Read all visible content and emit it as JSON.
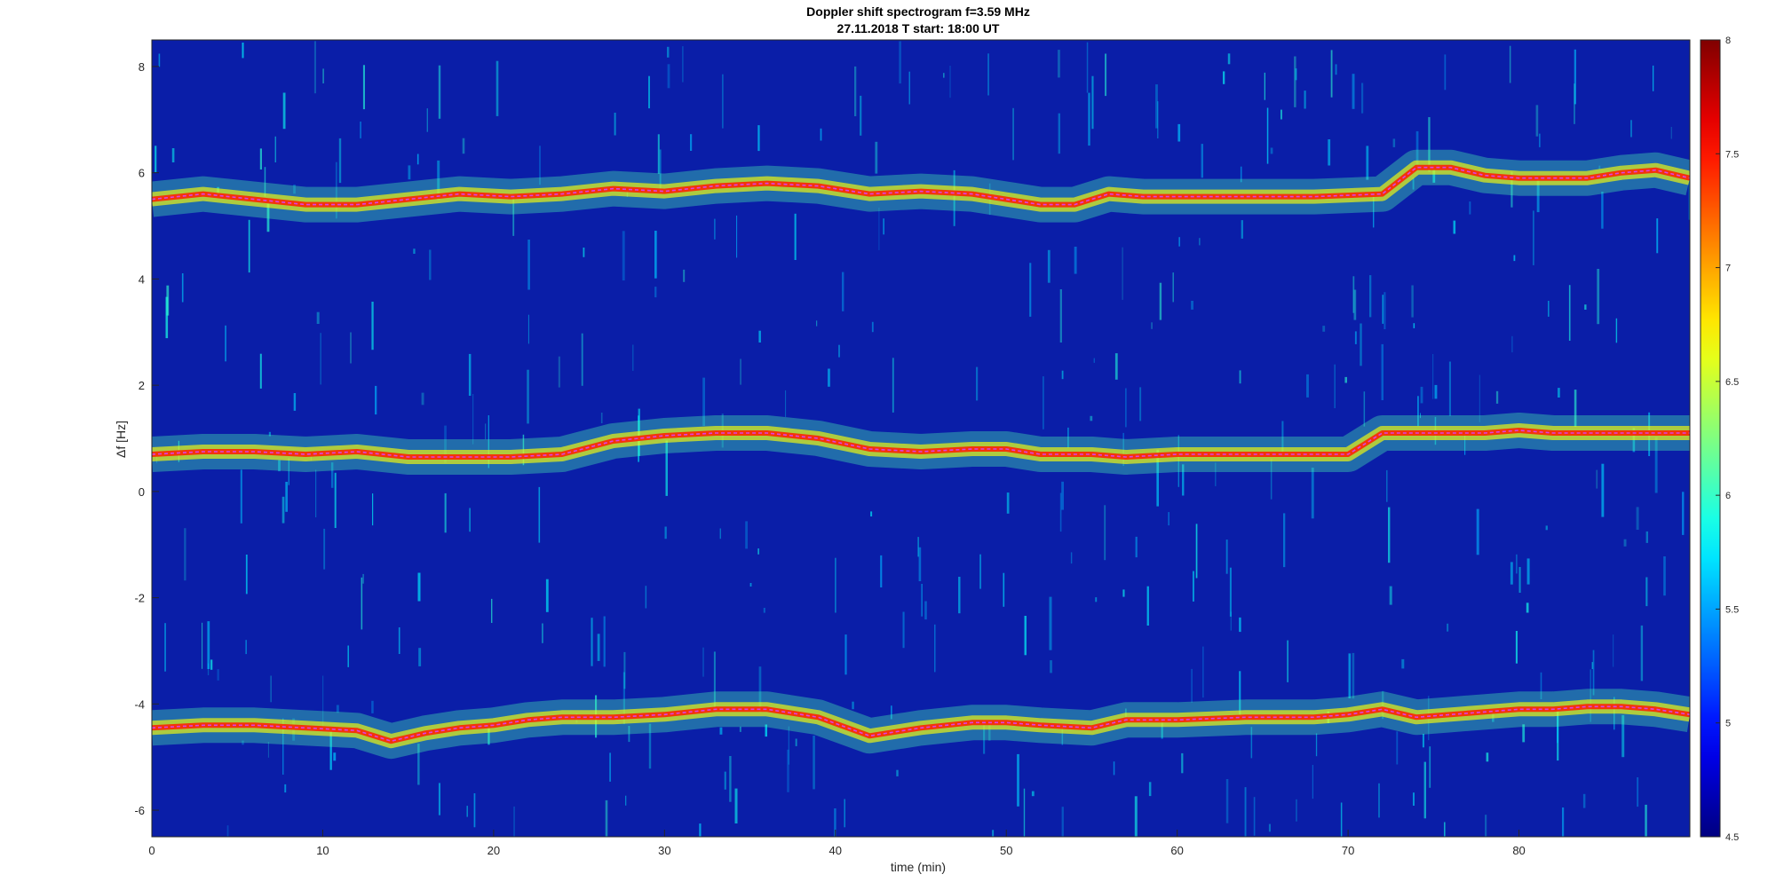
{
  "chart_data": {
    "type": "heatmap",
    "title_line1": "Doppler shift spectrogram f=3.59 MHz",
    "title_line2": "27.11.2018   T start: 18:00 UT",
    "xlabel": "time (min)",
    "ylabel": "Δf [Hz]",
    "xlim": [
      0,
      90
    ],
    "ylim": [
      -6.5,
      8.5
    ],
    "xticks": [
      0,
      10,
      20,
      30,
      40,
      50,
      60,
      70,
      80
    ],
    "yticks": [
      -6,
      -4,
      -2,
      0,
      2,
      4,
      6,
      8
    ],
    "colorbar": {
      "colormap": "jet",
      "clim": [
        4.5,
        8
      ],
      "ticks": [
        4.5,
        5,
        5.5,
        6,
        6.5,
        7,
        7.5,
        8
      ]
    },
    "background_color": "#0a1ea8",
    "trace_color": "#e040e0",
    "series": [
      {
        "x": [
          0,
          3,
          6,
          9,
          12,
          15,
          18,
          21,
          24,
          27,
          30,
          33,
          36,
          39,
          42,
          45,
          48,
          50,
          52,
          54,
          56,
          58,
          60,
          64,
          68,
          72,
          74,
          76,
          78,
          80,
          82,
          84,
          86,
          88,
          90
        ],
        "y": [
          5.5,
          5.6,
          5.5,
          5.4,
          5.4,
          5.5,
          5.6,
          5.55,
          5.6,
          5.7,
          5.65,
          5.75,
          5.8,
          5.75,
          5.6,
          5.65,
          5.6,
          5.5,
          5.4,
          5.4,
          5.6,
          5.55,
          5.55,
          5.55,
          5.55,
          5.6,
          6.1,
          6.1,
          5.95,
          5.9,
          5.9,
          5.9,
          6.0,
          6.05,
          5.9
        ]
      },
      {
        "x": [
          0,
          3,
          6,
          9,
          12,
          15,
          18,
          21,
          24,
          27,
          30,
          33,
          36,
          39,
          42,
          45,
          48,
          50,
          52,
          55,
          57,
          60,
          64,
          68,
          70,
          72,
          74,
          76,
          78,
          80,
          82,
          84,
          86,
          88,
          90
        ],
        "y": [
          0.7,
          0.75,
          0.75,
          0.7,
          0.75,
          0.65,
          0.65,
          0.65,
          0.7,
          0.95,
          1.05,
          1.1,
          1.1,
          1.0,
          0.8,
          0.75,
          0.8,
          0.8,
          0.7,
          0.7,
          0.65,
          0.7,
          0.7,
          0.7,
          0.7,
          1.1,
          1.1,
          1.1,
          1.1,
          1.15,
          1.1,
          1.1,
          1.1,
          1.1,
          1.1
        ]
      },
      {
        "x": [
          0,
          3,
          6,
          9,
          12,
          14,
          16,
          18,
          20,
          22,
          24,
          27,
          30,
          33,
          36,
          39,
          42,
          45,
          48,
          50,
          52,
          55,
          57,
          60,
          64,
          68,
          70,
          72,
          74,
          76,
          78,
          80,
          82,
          84,
          86,
          88,
          90
        ],
        "y": [
          -4.45,
          -4.4,
          -4.4,
          -4.45,
          -4.5,
          -4.7,
          -4.55,
          -4.45,
          -4.4,
          -4.3,
          -4.25,
          -4.25,
          -4.2,
          -4.1,
          -4.1,
          -4.25,
          -4.6,
          -4.45,
          -4.35,
          -4.35,
          -4.4,
          -4.45,
          -4.3,
          -4.3,
          -4.25,
          -4.25,
          -4.2,
          -4.1,
          -4.25,
          -4.2,
          -4.15,
          -4.1,
          -4.1,
          -4.05,
          -4.05,
          -4.1,
          -4.2
        ]
      }
    ]
  }
}
